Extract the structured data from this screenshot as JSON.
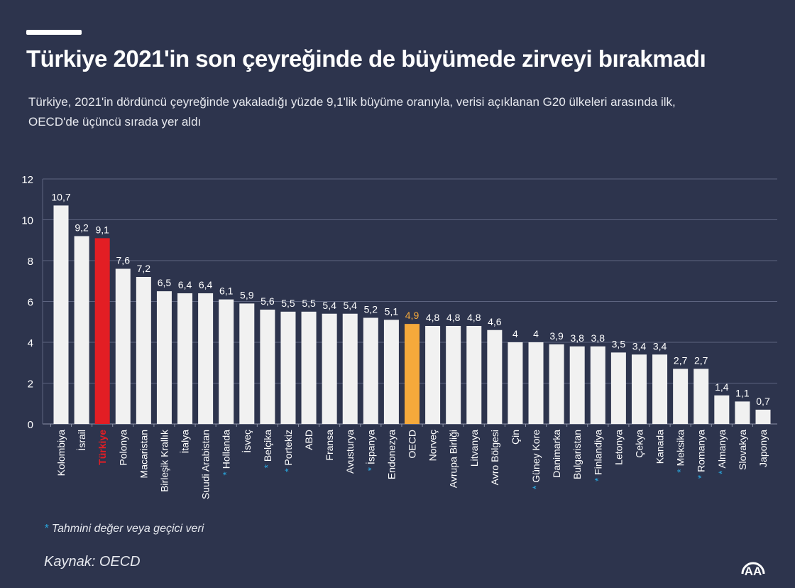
{
  "header": {
    "title": "Türkiye 2021'in son çeyreğinde de büyümede zirveyi bırakmadı",
    "subtitle": "Türkiye, 2021'in dördüncü çeyreğinde yakaladığı yüzde 9,1'lik büyüme oranıyla, verisi açıklanan G20 ülkeleri arasında ilk, OECD'de üçüncü sırada yer aldı"
  },
  "footer": {
    "note_star": "*",
    "note": "Tahmini değer veya geçici veri",
    "source": "Kaynak: OECD",
    "logo_text": "AA"
  },
  "colors": {
    "background": "#2d344d",
    "bar_default": "#f1f1f1",
    "bar_turkiye": "#e31e24",
    "bar_oecd": "#f5a93b",
    "asterisk": "#29a8e0",
    "grid": "#5d6480"
  },
  "chart_data": {
    "type": "bar",
    "ylim": [
      0,
      12
    ],
    "yticks": [
      "0",
      "2",
      "4",
      "6",
      "8",
      "10",
      "12"
    ],
    "grid": true,
    "categories": [
      "Kolombiya",
      "İsrail",
      "Türkiye",
      "Polonya",
      "Macaristan",
      "Birleşik Krallık",
      "İtalya",
      "Suudi Arabistan",
      "Hollanda",
      "İsveç",
      "Belçika",
      "Portekiz",
      "ABD",
      "Fransa",
      "Avusturya",
      "İspanya",
      "Endonezya",
      "OECD",
      "Norveç",
      "Avrupa Birliği",
      "Litvanya",
      "Avro Bölgesi",
      "Çin",
      "Güney Kore",
      "Danimarka",
      "Bulgaristan",
      "Finlandiya",
      "Letonya",
      "Çekya",
      "Kanada",
      "Meksika",
      "Romanya",
      "Almanya",
      "Slovakya",
      "Japonya"
    ],
    "values": [
      10.7,
      9.2,
      9.1,
      7.6,
      7.2,
      6.5,
      6.4,
      6.4,
      6.1,
      5.9,
      5.6,
      5.5,
      5.5,
      5.4,
      5.4,
      5.2,
      5.1,
      4.9,
      4.8,
      4.8,
      4.8,
      4.6,
      4,
      4,
      3.9,
      3.8,
      3.8,
      3.5,
      3.4,
      3.4,
      2.7,
      2.7,
      1.4,
      1.1,
      0.7
    ],
    "data_labels": [
      "10,7",
      "9,2",
      "9,1",
      "7,6",
      "7,2",
      "6,5",
      "6,4",
      "6,4",
      "6,1",
      "5,9",
      "5,6",
      "5,5",
      "5,5",
      "5,4",
      "5,4",
      "5,2",
      "5,1",
      "4,9",
      "4,8",
      "4,8",
      "4,8",
      "4,6",
      "4",
      "4",
      "3,9",
      "3,8",
      "3,8",
      "3,5",
      "3,4",
      "3,4",
      "2,7",
      "2,7",
      "1,4",
      "1,1",
      "0,7"
    ],
    "estimated": [
      "Hollanda",
      "Belçika",
      "Portekiz",
      "İspanya",
      "Güney Kore",
      "Finlandiya",
      "Meksika",
      "Romanya",
      "Almanya"
    ],
    "highlight": {
      "Türkiye": "bar_turkiye",
      "OECD": "bar_oecd"
    }
  }
}
